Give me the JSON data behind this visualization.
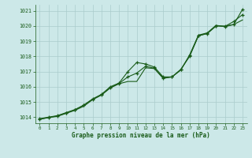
{
  "bg_color": "#cce8e8",
  "grid_color": "#aacccc",
  "line_color": "#1a5c1a",
  "xlabel": "Graphe pression niveau de la mer (hPa)",
  "xlim": [
    -0.5,
    23.5
  ],
  "ylim": [
    1013.6,
    1021.4
  ],
  "yticks": [
    1014,
    1015,
    1016,
    1017,
    1018,
    1019,
    1020,
    1021
  ],
  "xticks": [
    0,
    1,
    2,
    3,
    4,
    5,
    6,
    7,
    8,
    9,
    10,
    11,
    12,
    13,
    14,
    15,
    16,
    17,
    18,
    19,
    20,
    21,
    22,
    23
  ],
  "line1_x": [
    0,
    1,
    2,
    3,
    4,
    5,
    6,
    7,
    8,
    9,
    10,
    11,
    12,
    13,
    14,
    15,
    16,
    17,
    18,
    19,
    20,
    21,
    22,
    23
  ],
  "line1_y": [
    1013.85,
    1013.98,
    1014.05,
    1014.25,
    1014.45,
    1014.72,
    1015.15,
    1015.45,
    1015.92,
    1016.2,
    1016.35,
    1016.35,
    1017.25,
    1017.2,
    1016.55,
    1016.65,
    1017.1,
    1018.1,
    1019.4,
    1019.55,
    1020.05,
    1019.95,
    1020.1,
    1020.4
  ],
  "line2_x": [
    0,
    1,
    2,
    3,
    4,
    5,
    6,
    7,
    8,
    9,
    10,
    11,
    12,
    13,
    14,
    15,
    16,
    17,
    18,
    19,
    20,
    21,
    22,
    23
  ],
  "line2_y": [
    1013.9,
    1014.0,
    1014.1,
    1014.3,
    1014.5,
    1014.8,
    1015.2,
    1015.5,
    1016.0,
    1016.25,
    1017.0,
    1017.6,
    1017.5,
    1017.3,
    1016.65,
    1016.65,
    1017.15,
    1018.0,
    1019.35,
    1019.5,
    1020.0,
    1020.0,
    1020.1,
    1021.1
  ],
  "line3_x": [
    0,
    1,
    2,
    3,
    4,
    5,
    6,
    7,
    8,
    9,
    10,
    11,
    12,
    13,
    14,
    15,
    16,
    17,
    18,
    19,
    20,
    21,
    22,
    23
  ],
  "line3_y": [
    1013.88,
    1013.97,
    1014.08,
    1014.28,
    1014.48,
    1014.78,
    1015.18,
    1015.48,
    1015.95,
    1016.22,
    1016.65,
    1016.9,
    1017.35,
    1017.22,
    1016.58,
    1016.65,
    1017.12,
    1018.05,
    1019.37,
    1019.52,
    1020.02,
    1019.97,
    1020.3,
    1020.75
  ]
}
